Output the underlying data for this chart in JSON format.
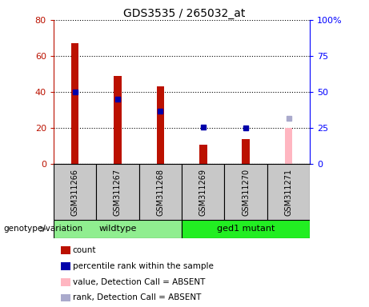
{
  "title": "GDS3535 / 265032_at",
  "samples": [
    "GSM311266",
    "GSM311267",
    "GSM311268",
    "GSM311269",
    "GSM311270",
    "GSM311271"
  ],
  "count_present": [
    67,
    49,
    43,
    11,
    14,
    null
  ],
  "count_absent": [
    null,
    null,
    null,
    null,
    null,
    20
  ],
  "rank_present": [
    50,
    45,
    37,
    null,
    null,
    null
  ],
  "rank_present_absent": [
    null,
    null,
    null,
    26,
    25,
    null
  ],
  "rank_absent": [
    null,
    null,
    null,
    null,
    null,
    32
  ],
  "wildtype_color": "#90EE90",
  "mutant_color": "#22EE22",
  "bar_color_present": "#BB1100",
  "bar_color_absent": "#FFB6C1",
  "rank_color_present": "#0000AA",
  "rank_color_absent": "#AAAACC",
  "ylim_left": [
    0,
    80
  ],
  "ylim_right": [
    0,
    100
  ],
  "yticks_left": [
    0,
    20,
    40,
    60,
    80
  ],
  "yticks_right": [
    0,
    25,
    50,
    75,
    100
  ],
  "ytick_labels_right": [
    "0",
    "25",
    "50",
    "75",
    "100%"
  ],
  "gray_bg": "#C8C8C8",
  "legend_items": [
    {
      "label": "count",
      "color": "#BB1100"
    },
    {
      "label": "percentile rank within the sample",
      "color": "#0000AA"
    },
    {
      "label": "value, Detection Call = ABSENT",
      "color": "#FFB6C1"
    },
    {
      "label": "rank, Detection Call = ABSENT",
      "color": "#AAAACC"
    }
  ]
}
